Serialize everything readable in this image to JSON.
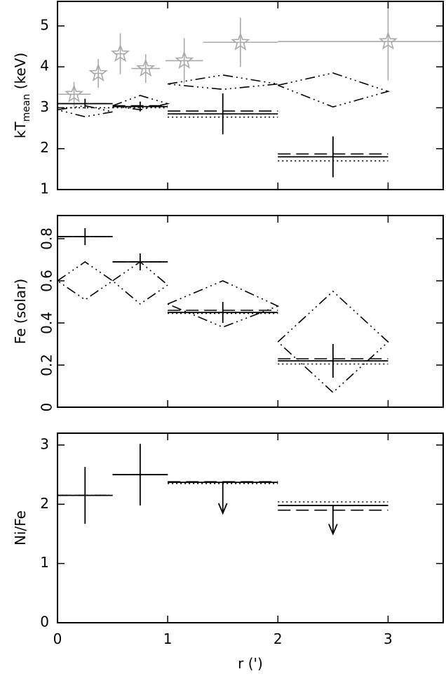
{
  "chart_data": [
    {
      "type": "errorbar",
      "ylabel": [
        "kT",
        "mean",
        " (keV)"
      ],
      "xlim": [
        0,
        3.5
      ],
      "xticks": [
        0,
        1,
        2,
        3
      ],
      "ylim": [
        1,
        5.6
      ],
      "yticks": [
        1,
        2,
        3,
        4,
        5
      ],
      "points": [
        {
          "color": "#aaaaaa",
          "marker": "star",
          "x": [
            0.15,
            0.37,
            0.57,
            0.8,
            1.15,
            1.66,
            3.0
          ],
          "xerr": [
            0.15,
            0.04,
            0.05,
            0.13,
            0.17,
            0.34,
            1.0
          ],
          "y": [
            3.33,
            3.84,
            4.32,
            3.96,
            4.15,
            4.6,
            4.62
          ],
          "yerr": [
            0.3,
            0.35,
            0.5,
            0.35,
            0.55,
            0.6,
            0.95
          ]
        },
        {
          "color": "#000000",
          "marker": "none",
          "x": [
            0.25,
            0.75,
            1.5,
            2.5
          ],
          "xerr": [
            0.25,
            0.25,
            0.5,
            0.5
          ],
          "y": [
            3.1,
            3.03,
            2.85,
            1.8
          ],
          "yerr": [
            0.12,
            0.12,
            0.5,
            0.5
          ]
        }
      ],
      "lines": [
        {
          "dash": "dashed",
          "x": [
            0,
            0.5,
            null,
            0.5,
            1,
            null,
            1,
            2,
            null,
            2,
            3
          ],
          "y": [
            3.1,
            3.1,
            null,
            3.05,
            3.05,
            null,
            2.92,
            2.92,
            null,
            1.87,
            1.87
          ]
        },
        {
          "dash": "dotted",
          "x": [
            0,
            0.5,
            null,
            0.5,
            1,
            null,
            1,
            2,
            null,
            2,
            3
          ],
          "y": [
            3.0,
            3.0,
            null,
            3.0,
            3.0,
            null,
            2.77,
            2.77,
            null,
            1.7,
            1.7
          ]
        },
        {
          "dash": "dashdot",
          "x": [
            0,
            0.25,
            0.5,
            0.25,
            0,
            null,
            0.5,
            0.75,
            1,
            0.75,
            0.5,
            null,
            1,
            1.5,
            2,
            1.5,
            1,
            null,
            2,
            2.5,
            3,
            2.5,
            2
          ],
          "y": [
            2.95,
            3.05,
            2.9,
            2.78,
            2.95,
            null,
            3.05,
            3.3,
            3.1,
            2.95,
            3.05,
            null,
            3.58,
            3.8,
            3.58,
            3.45,
            3.58,
            null,
            3.55,
            3.85,
            3.4,
            3.02,
            3.55
          ]
        }
      ]
    },
    {
      "type": "errorbar",
      "ylabel": [
        "Fe (solar)"
      ],
      "xlim": [
        0,
        3.5
      ],
      "xticks": [
        0,
        1,
        2,
        3
      ],
      "ylim": [
        0,
        0.91
      ],
      "yticks": [
        0,
        0.2,
        0.4,
        0.6,
        0.8
      ],
      "points": [
        {
          "color": "#000000",
          "marker": "none",
          "x": [
            0.25,
            0.75,
            1.5,
            2.5
          ],
          "xerr": [
            0.25,
            0.25,
            0.5,
            0.5
          ],
          "y": [
            0.81,
            0.69,
            0.45,
            0.22
          ],
          "yerr": [
            0.04,
            0.04,
            0.05,
            0.08
          ]
        }
      ],
      "lines": [
        {
          "dash": "dashed",
          "x": [
            0,
            0.5,
            null,
            0.5,
            1,
            null,
            1,
            2,
            null,
            2,
            3
          ],
          "y": [
            0.81,
            0.81,
            null,
            0.69,
            0.69,
            null,
            0.46,
            0.46,
            null,
            0.23,
            0.23
          ]
        },
        {
          "dash": "dotted",
          "x": [
            0,
            0.5,
            null,
            0.5,
            1,
            null,
            1,
            2,
            null,
            2,
            3
          ],
          "y": [
            0.81,
            0.81,
            null,
            0.69,
            0.69,
            null,
            0.445,
            0.445,
            null,
            0.205,
            0.205
          ]
        },
        {
          "dash": "dashdot",
          "x": [
            0,
            0.25,
            0.5,
            0.25,
            0,
            null,
            0.5,
            0.75,
            1,
            0.75,
            0.5,
            null,
            1,
            1.5,
            2,
            1.5,
            1,
            null,
            2,
            2.5,
            3,
            2.5,
            2
          ],
          "y": [
            0.6,
            0.69,
            0.6,
            0.51,
            0.6,
            null,
            0.6,
            0.69,
            0.58,
            0.49,
            0.6,
            null,
            0.49,
            0.6,
            0.48,
            0.38,
            0.49,
            null,
            0.31,
            0.55,
            0.31,
            0.07,
            0.31
          ]
        }
      ]
    },
    {
      "type": "errorbar",
      "ylabel": [
        "Ni/Fe"
      ],
      "xlabel": "r (')",
      "xlim": [
        0,
        3.5
      ],
      "xticks": [
        0,
        1,
        2,
        3
      ],
      "ylim": [
        0,
        3.2
      ],
      "yticks": [
        0,
        1,
        2,
        3
      ],
      "points": [
        {
          "color": "#000000",
          "marker": "none",
          "x": [
            0.25,
            0.75
          ],
          "xerr": [
            0.25,
            0.25
          ],
          "y": [
            2.15,
            2.5
          ],
          "yerr": [
            0.48,
            0.52
          ]
        }
      ],
      "upper_limits": {
        "x": [
          1.5,
          2.5
        ],
        "xerr": [
          0.5,
          0.5
        ],
        "y": [
          2.37,
          1.98
        ],
        "arrow_to": [
          1.85,
          1.5
        ]
      },
      "lines": [
        {
          "dash": "dashed",
          "x": [
            0,
            0.5,
            null,
            0.5,
            1,
            null,
            1,
            2,
            null,
            2,
            3
          ],
          "y": [
            2.15,
            2.15,
            null,
            2.5,
            2.5,
            null,
            2.38,
            2.38,
            null,
            1.9,
            1.9
          ]
        },
        {
          "dash": "dotted",
          "x": [
            0,
            0.5,
            null,
            0.5,
            1,
            null,
            1,
            2,
            null,
            2,
            3
          ],
          "y": [
            2.15,
            2.15,
            null,
            2.5,
            2.5,
            null,
            2.35,
            2.35,
            null,
            2.04,
            2.04
          ]
        }
      ]
    }
  ]
}
